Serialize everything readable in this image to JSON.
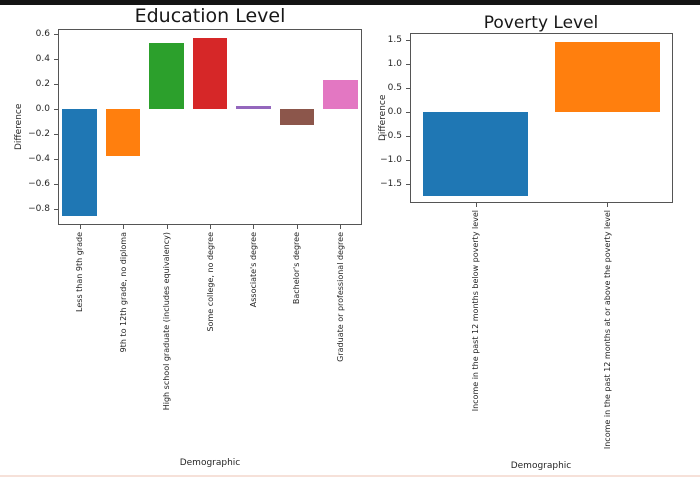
{
  "page": {
    "top_border_color": "#141414",
    "bottom_accent_color": "#f6e1d9",
    "background_color": "#ffffff",
    "axis_color": "#555555",
    "text_color": "#262626"
  },
  "chart_data": [
    {
      "type": "bar",
      "title": "Education Level",
      "xlabel": "Demographic",
      "ylabel": "Difference",
      "categories": [
        "Less than 9th grade",
        "9th to 12th grade, no diploma",
        "High school graduate (includes equivalency)",
        "Some college, no degree",
        "Associate's degree",
        "Bachelor's degree",
        "Graduate or professional degree"
      ],
      "values": [
        -0.86,
        -0.38,
        0.53,
        0.57,
        0.02,
        -0.13,
        0.23
      ],
      "bar_colors": [
        "#1f77b4",
        "#ff7f0e",
        "#2ca02c",
        "#d62728",
        "#9467bd",
        "#8c564b",
        "#e377c2"
      ],
      "yticks": [
        0.6,
        0.4,
        0.2,
        0.0,
        -0.2,
        -0.4,
        -0.6,
        -0.8
      ],
      "ylim": [
        -0.93,
        0.64
      ],
      "grid": false,
      "legend": null
    },
    {
      "type": "bar",
      "title": "Poverty Level",
      "xlabel": "Demographic",
      "ylabel": "Difference",
      "categories": [
        "Income in the past 12 months below poverty level",
        "Income in the past 12 months at or above the poverty level"
      ],
      "values": [
        -1.75,
        1.47
      ],
      "bar_colors": [
        "#1f77b4",
        "#ff7f0e"
      ],
      "yticks": [
        1.5,
        1.0,
        0.5,
        0.0,
        -0.5,
        -1.0,
        -1.5
      ],
      "ylim": [
        -1.89,
        1.65
      ],
      "grid": false,
      "legend": null
    }
  ]
}
